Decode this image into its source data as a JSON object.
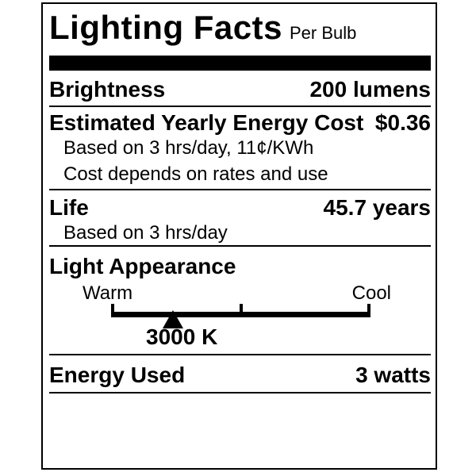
{
  "label": {
    "title": "Lighting Facts",
    "subtitle": "Per Bulb",
    "rows": {
      "brightness": {
        "label": "Brightness",
        "value": "200 lumens"
      },
      "energy_cost": {
        "label": "Estimated Yearly Energy Cost",
        "value": "$0.36",
        "notes": [
          "Based on 3 hrs/day, 11¢/KWh",
          "Cost depends on rates and use"
        ]
      },
      "life": {
        "label": "Life",
        "value": "45.7 years",
        "note": "Based on 3 hrs/day"
      },
      "light_appearance": {
        "label": "Light Appearance",
        "warm_label": "Warm",
        "cool_label": "Cool",
        "kelvin": "3000 K",
        "pointer_percent": 24,
        "tick_count": 3
      },
      "energy_used": {
        "label": "Energy Used",
        "value": "3 watts"
      }
    },
    "colors": {
      "ink": "#000000",
      "background": "#ffffff"
    }
  }
}
